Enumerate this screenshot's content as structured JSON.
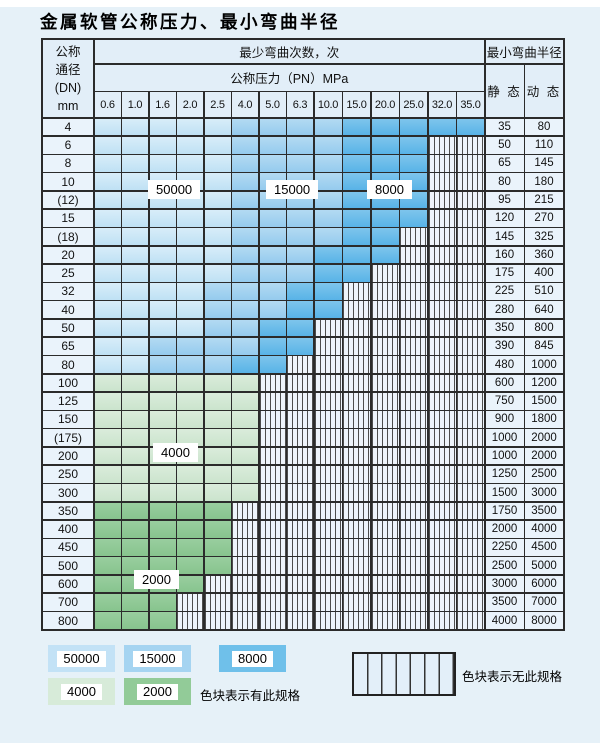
{
  "title": "金属软管公称压力、最小弯曲半径",
  "table": {
    "header": {
      "dn_lines": [
        "公称",
        "通径",
        "(DN)",
        "mm"
      ],
      "bend_cycles": "最少弯曲次数，次",
      "pressure": "公称压力（PN）MPa",
      "radius": "最小弯曲半径",
      "static": "静 态",
      "dynamic": "动 态",
      "pressure_values": [
        "0.6",
        "1.0",
        "1.6",
        "2.0",
        "2.5",
        "4.0",
        "5.0",
        "6.3",
        "10.0",
        "15.0",
        "20.0",
        "25.0",
        "32.0",
        "35.0"
      ]
    },
    "zone_legend": {
      "L": "50000次弯曲",
      "M": "15000次弯曲",
      "D": "8000次弯曲",
      "g": "4000次弯曲",
      "G": "2000次弯曲",
      "X": "无此规格"
    },
    "zone_colors": {
      "L": "#c3e2f6",
      "M": "#a5d4f1",
      "D": "#6fc0ea",
      "g": "#d7ebd9",
      "G": "#92cb98",
      "X": "#eef4fb"
    },
    "rows": [
      {
        "dn": "4",
        "zones": "LLLLLMMMMDDDDD",
        "static": "35",
        "dynamic": "80"
      },
      {
        "dn": "6",
        "zones": "LLLLLMMMMDDDXX",
        "static": "50",
        "dynamic": "110"
      },
      {
        "dn": "8",
        "zones": "LLLLLMMMMDDDXX",
        "static": "65",
        "dynamic": "145"
      },
      {
        "dn": "10",
        "zones": "LLLLLMMMMDDDXX",
        "static": "80",
        "dynamic": "180"
      },
      {
        "dn": "(12)",
        "zones": "LLLLLMMMMDDDXX",
        "static": "95",
        "dynamic": "215"
      },
      {
        "dn": "15",
        "zones": "LLLLLMMMMDDDXX",
        "static": "120",
        "dynamic": "270"
      },
      {
        "dn": "(18)",
        "zones": "LLLLLMMMMDDXXX",
        "static": "145",
        "dynamic": "325"
      },
      {
        "dn": "20",
        "zones": "LLLLLMMMDDDXXX",
        "static": "160",
        "dynamic": "360"
      },
      {
        "dn": "25",
        "zones": "LLLLLMMMDDXXXX",
        "static": "175",
        "dynamic": "400"
      },
      {
        "dn": "32",
        "zones": "LLLLMMMDDXXXXX",
        "static": "225",
        "dynamic": "510"
      },
      {
        "dn": "40",
        "zones": "LLLLMMMDDXXXXX",
        "static": "280",
        "dynamic": "640"
      },
      {
        "dn": "50",
        "zones": "LLLLMMDDXXXXXX",
        "static": "350",
        "dynamic": "800"
      },
      {
        "dn": "65",
        "zones": "LLMMMMDDXXXXXX",
        "static": "390",
        "dynamic": "845"
      },
      {
        "dn": "80",
        "zones": "LLMMMDDXXXXXXX",
        "static": "480",
        "dynamic": "1000"
      },
      {
        "dn": "100",
        "zones": "ggggggXXXXXXXX",
        "static": "600",
        "dynamic": "1200"
      },
      {
        "dn": "125",
        "zones": "ggggggXXXXXXXX",
        "static": "750",
        "dynamic": "1500"
      },
      {
        "dn": "150",
        "zones": "ggggggXXXXXXXX",
        "static": "900",
        "dynamic": "1800"
      },
      {
        "dn": "(175)",
        "zones": "ggggggXXXXXXXX",
        "static": "1000",
        "dynamic": "2000"
      },
      {
        "dn": "200",
        "zones": "ggggggXXXXXXXX",
        "static": "1000",
        "dynamic": "2000"
      },
      {
        "dn": "250",
        "zones": "ggggggXXXXXXXX",
        "static": "1250",
        "dynamic": "2500"
      },
      {
        "dn": "300",
        "zones": "ggggggXXXXXXXX",
        "static": "1500",
        "dynamic": "3000"
      },
      {
        "dn": "350",
        "zones": "GGGGGXXXXXXXXX",
        "static": "1750",
        "dynamic": "3500"
      },
      {
        "dn": "400",
        "zones": "GGGGGXXXXXXXXX",
        "static": "2000",
        "dynamic": "4000"
      },
      {
        "dn": "450",
        "zones": "GGGGGXXXXXXXXX",
        "static": "2250",
        "dynamic": "4500"
      },
      {
        "dn": "500",
        "zones": "GGGGGXXXXXXXXX",
        "static": "2500",
        "dynamic": "5000"
      },
      {
        "dn": "600",
        "zones": "GGGGXXXXXXXXXX",
        "static": "3000",
        "dynamic": "6000"
      },
      {
        "dn": "700",
        "zones": "GGGXXXXXXXXXXX",
        "static": "3500",
        "dynamic": "7000"
      },
      {
        "dn": "800",
        "zones": "GGGXXXXXXXXXXX",
        "static": "4000",
        "dynamic": "8000"
      }
    ]
  },
  "overlay_tags": {
    "t50000": "50000",
    "t15000": "15000",
    "t8000": "8000",
    "t4000": "4000",
    "t2000": "2000"
  },
  "legend": {
    "sw50000": "50000",
    "sw15000": "15000",
    "sw8000": "8000",
    "sw4000": "4000",
    "sw2000": "2000",
    "has_spec": "色块表示有此规格",
    "no_spec": "色块表示无此规格"
  }
}
